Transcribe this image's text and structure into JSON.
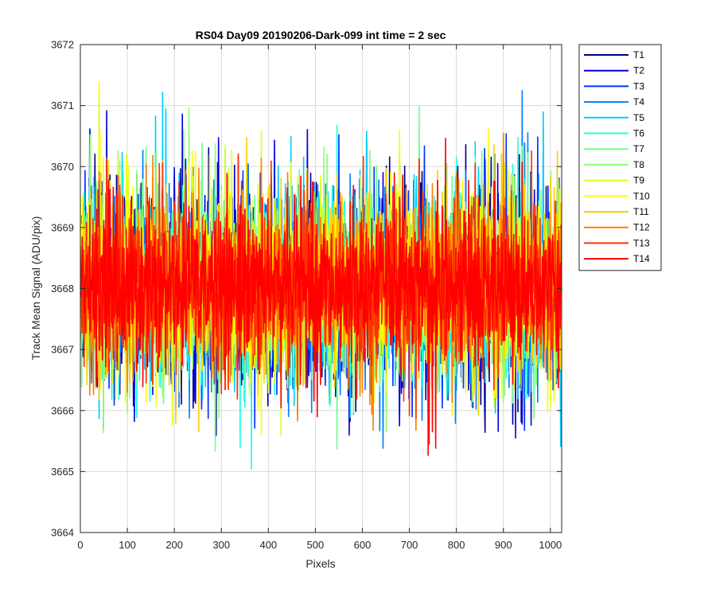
{
  "chart_data": {
    "type": "line",
    "title": "RS04 Day09 20190206-Dark-099 int time = 2 sec",
    "xlabel": "Pixels",
    "ylabel": "Track Mean Signal (ADU/pix)",
    "xlim": [
      0,
      1024
    ],
    "ylim": [
      3664,
      3672
    ],
    "xticks": [
      0,
      100,
      200,
      300,
      400,
      500,
      600,
      700,
      800,
      900,
      1000
    ],
    "yticks": [
      3664,
      3665,
      3666,
      3667,
      3668,
      3669,
      3670,
      3671,
      3672
    ],
    "grid": true,
    "legend_position": "outside-top-right",
    "series": [
      {
        "name": "T1",
        "color": "#00008f",
        "mean": 3668.0,
        "values": [
          3668.2,
          3670.6,
          3667.1,
          3669.3,
          3666.4,
          3670.1,
          3667.8,
          3669.6,
          3665.9,
          3668.4,
          3670.3,
          3667.2,
          3665.6,
          3669.9,
          3667.5,
          3670.4,
          3666.7,
          3668.9,
          3670.0,
          3666.1,
          3669.2,
          3667.4,
          3665.3,
          3669.8,
          3668.0,
          3670.2,
          3667.0,
          3668.6,
          3665.8,
          3669.7,
          3667.6,
          3668.3,
          3670.1,
          3666.3,
          3669.4,
          3667.9,
          3665.4,
          3669.0,
          3668.1,
          3667.3,
          3670.5,
          3668.8,
          3666.0,
          3669.5,
          3667.7,
          3665.7,
          3670.6,
          3668.5,
          3667.1,
          3669.1,
          3666.2
        ]
      },
      {
        "name": "T2",
        "color": "#0000df",
        "mean": 3668.0,
        "values": [
          3669.1,
          3666.8,
          3670.2,
          3667.6,
          3668.9,
          3665.9,
          3670.5,
          3667.3,
          3669.4,
          3666.5,
          3671.0,
          3667.8,
          3668.4,
          3666.1,
          3669.9,
          3668.2,
          3667.0,
          3670.1,
          3666.4,
          3668.7,
          3669.6,
          3667.5,
          3665.7,
          3670.3,
          3667.9,
          3668.5,
          3666.6,
          3669.2,
          3667.2,
          3670.4,
          3666.0,
          3668.8,
          3669.5,
          3667.4,
          3666.3,
          3670.0,
          3668.1,
          3667.7,
          3665.8,
          3669.7,
          3668.3,
          3667.1,
          3670.2,
          3666.7,
          3669.0,
          3668.6,
          3665.6,
          3669.8,
          3667.6,
          3668.0,
          3666.9
        ]
      },
      {
        "name": "T3",
        "color": "#0030ff",
        "mean": 3668.0,
        "values": [
          3667.4,
          3670.7,
          3666.2,
          3669.0,
          3667.9,
          3670.2,
          3665.8,
          3668.6,
          3669.7,
          3666.9,
          3668.1,
          3670.5,
          3667.0,
          3669.3,
          3666.4,
          3668.7,
          3670.0,
          3667.6,
          3665.5,
          3669.5,
          3668.3,
          3667.2,
          3670.3,
          3666.6,
          3668.9,
          3669.8,
          3667.3,
          3665.9,
          3670.1,
          3668.0,
          3666.8,
          3669.2,
          3667.7,
          3670.6,
          3666.1,
          3668.4,
          3669.6,
          3667.1,
          3665.7,
          3669.9,
          3668.2,
          3666.5,
          3670.4,
          3667.5,
          3668.8,
          3669.1,
          3666.3,
          3670.0,
          3667.8,
          3668.5,
          3666.7
        ]
      },
      {
        "name": "T4",
        "color": "#0080ff",
        "mean": 3668.0,
        "values": [
          3668.6,
          3666.3,
          3671.4,
          3667.2,
          3669.5,
          3666.0,
          3670.1,
          3668.3,
          3667.0,
          3669.8,
          3665.9,
          3668.9,
          3670.4,
          3667.5,
          3666.7,
          3669.3,
          3668.0,
          3670.2,
          3666.5,
          3668.5,
          3669.6,
          3667.3,
          3665.6,
          3670.0,
          3668.2,
          3667.8,
          3669.1,
          3666.2,
          3670.5,
          3667.7,
          3668.7,
          3665.8,
          3669.7,
          3667.1,
          3668.4,
          3670.3,
          3666.6,
          3669.0,
          3667.9,
          3665.9,
          3670.1,
          3668.1,
          3666.9,
          3669.4,
          3667.4,
          3668.8,
          3671.4,
          3666.4,
          3669.2,
          3668.0,
          3667.6
        ]
      },
      {
        "name": "T5",
        "color": "#00cfff",
        "mean": 3668.0,
        "values": [
          3669.2,
          3667.1,
          3665.8,
          3670.3,
          3668.0,
          3666.6,
          3669.7,
          3667.8,
          3671.5,
          3666.2,
          3668.6,
          3670.1,
          3667.4,
          3665.7,
          3669.4,
          3668.3,
          3666.9,
          3670.5,
          3667.6,
          3668.9,
          3666.0,
          3669.9,
          3667.2,
          3668.5,
          3670.2,
          3666.4,
          3669.0,
          3667.9,
          3665.5,
          3670.4,
          3668.1,
          3667.0,
          3669.6,
          3666.8,
          3668.7,
          3670.0,
          3667.5,
          3665.9,
          3669.3,
          3668.2,
          3666.5,
          3670.6,
          3667.3,
          3668.8,
          3669.5,
          3666.1,
          3670.2,
          3667.7,
          3668.4,
          3666.7,
          3669.1
        ]
      },
      {
        "name": "T6",
        "color": "#20ffdf",
        "mean": 3668.0,
        "values": [
          3667.7,
          3669.9,
          3666.3,
          3668.8,
          3670.4,
          3667.0,
          3665.7,
          3669.5,
          3668.2,
          3666.8,
          3670.1,
          3667.6,
          3669.0,
          3666.1,
          3668.5,
          3670.3,
          3667.3,
          3664.2,
          3669.8,
          3668.0,
          3666.6,
          3670.0,
          3667.8,
          3669.3,
          3666.4,
          3668.7,
          3670.5,
          3667.1,
          3665.8,
          3669.6,
          3668.3,
          3666.9,
          3670.2,
          3667.4,
          3668.9,
          3666.0,
          3669.7,
          3667.9,
          3665.6,
          3670.4,
          3668.1,
          3667.2,
          3669.4,
          3666.5,
          3668.6,
          3670.1,
          3667.5,
          3666.2,
          3669.1,
          3668.4,
          3667.0
        ]
      },
      {
        "name": "T7",
        "color": "#70ff8f",
        "mean": 3668.0,
        "values": [
          3668.9,
          3666.5,
          3670.2,
          3667.4,
          3669.6,
          3665.9,
          3668.3,
          3670.7,
          3667.1,
          3669.0,
          3666.7,
          3668.6,
          3670.3,
          3667.8,
          3665.6,
          3669.4,
          3668.0,
          3666.3,
          3670.5,
          3667.5,
          3668.8,
          3669.7,
          3666.1,
          3668.2,
          3670.1,
          3667.3,
          3665.8,
          3669.5,
          3668.5,
          3666.8,
          3670.4,
          3667.6,
          3669.1,
          3666.4,
          3668.7,
          3670.0,
          3667.0,
          3665.7,
          3669.8,
          3668.1,
          3666.6,
          3670.3,
          3667.9,
          3668.4,
          3669.3,
          3666.0,
          3670.6,
          3667.2,
          3668.9,
          3666.9,
          3669.2
        ]
      },
      {
        "name": "T8",
        "color": "#8fff70",
        "mean": 3668.0,
        "values": [
          3667.3,
          3670.0,
          3666.8,
          3669.2,
          3667.9,
          3665.7,
          3670.6,
          3668.4,
          3666.2,
          3669.7,
          3667.6,
          3671.6,
          3666.5,
          3668.7,
          3670.1,
          3667.1,
          3669.4,
          3666.0,
          3668.2,
          3670.4,
          3667.7,
          3665.9,
          3669.6,
          3668.5,
          3666.7,
          3670.2,
          3667.4,
          3668.9,
          3666.3,
          3669.9,
          3668.0,
          3667.0,
          3670.5,
          3666.6,
          3668.6,
          3669.5,
          3667.2,
          3665.6,
          3670.3,
          3668.3,
          3666.9,
          3669.1,
          3667.8,
          3668.8,
          3666.1,
          3670.0,
          3667.5,
          3668.1,
          3669.8,
          3666.4,
          3668.5
        ]
      },
      {
        "name": "T9",
        "color": "#dfff20",
        "mean": 3668.0,
        "values": [
          3668.4,
          3666.6,
          3669.8,
          3667.5,
          3670.5,
          3666.1,
          3668.9,
          3667.2,
          3669.5,
          3665.8,
          3670.2,
          3668.0,
          3666.9,
          3669.3,
          3667.7,
          3670.6,
          3666.4,
          3668.6,
          3669.9,
          3667.0,
          3665.7,
          3670.3,
          3668.2,
          3666.8,
          3669.6,
          3667.4,
          3668.7,
          3670.1,
          3666.2,
          3669.0,
          3667.9,
          3665.9,
          3670.4,
          3668.5,
          3667.1,
          3669.4,
          3666.5,
          3668.8,
          3670.0,
          3667.6,
          3666.0,
          3669.7,
          3668.1,
          3667.3,
          3670.2,
          3666.7,
          3668.9,
          3669.2,
          3667.8,
          3665.8,
          3670.3
        ]
      },
      {
        "name": "T10",
        "color": "#ffff00",
        "mean": 3668.0,
        "values": [
          3669.5,
          3667.0,
          3671.6,
          3666.6,
          3668.8,
          3670.3,
          3667.4,
          3665.9,
          3669.9,
          3668.2,
          3666.7,
          3670.7,
          3667.8,
          3669.1,
          3666.3,
          3668.5,
          3670.2,
          3667.2,
          3665.6,
          3669.7,
          3668.1,
          3666.9,
          3670.5,
          3667.6,
          3668.7,
          3669.4,
          3666.2,
          3670.0,
          3667.9,
          3668.4,
          3666.5,
          3669.8,
          3667.3,
          3670.4,
          3665.8,
          3668.9,
          3669.6,
          3667.0,
          3666.8,
          3670.1,
          3668.3,
          3667.5,
          3669.2,
          3666.0,
          3670.6,
          3667.7,
          3668.6,
          3669.0,
          3666.4,
          3670.2,
          3667.1
        ]
      },
      {
        "name": "T11",
        "color": "#ffcf00",
        "mean": 3668.0,
        "values": [
          3667.6,
          3669.7,
          3666.0,
          3670.4,
          3668.1,
          3666.8,
          3669.3,
          3667.3,
          3670.6,
          3665.8,
          3668.7,
          3669.9,
          3667.0,
          3666.5,
          3670.1,
          3668.4,
          3667.7,
          3669.5,
          3666.2,
          3668.9,
          3670.3,
          3667.4,
          3665.7,
          3669.8,
          3668.0,
          3666.7,
          3670.5,
          3667.8,
          3668.6,
          3669.1,
          3666.3,
          3670.0,
          3667.2,
          3668.3,
          3669.6,
          3666.9,
          3664.9,
          3670.2,
          3668.5,
          3667.5,
          3669.4,
          3666.1,
          3668.8,
          3670.4,
          3667.1,
          3666.6,
          3669.9,
          3668.2,
          3667.9,
          3670.1,
          3666.4
        ]
      },
      {
        "name": "T12",
        "color": "#ff8000",
        "mean": 3668.0,
        "values": [
          3668.1,
          3666.2,
          3670.1,
          3667.5,
          3669.4,
          3665.9,
          3668.7,
          3670.3,
          3667.0,
          3669.8,
          3666.6,
          3668.4,
          3670.0,
          3667.7,
          3666.0,
          3669.5,
          3668.2,
          3666.8,
          3670.4,
          3667.3,
          3668.9,
          3669.2,
          3665.8,
          3668.5,
          3670.2,
          3667.6,
          3666.4,
          3669.7,
          3668.0,
          3667.1,
          3664.6,
          3669.0,
          3667.9,
          3670.5,
          3666.3,
          3668.6,
          3669.6,
          3667.4,
          3666.1,
          3670.1,
          3668.3,
          3667.8,
          3669.3,
          3666.7,
          3670.6,
          3667.2,
          3668.8,
          3669.9,
          3666.5,
          3668.4,
          3667.0
        ]
      },
      {
        "name": "T13",
        "color": "#ff3000",
        "mean": 3668.0,
        "values": [
          3668.7,
          3667.2,
          3669.9,
          3666.4,
          3670.2,
          3667.8,
          3668.3,
          3666.1,
          3669.6,
          3667.5,
          3670.0,
          3666.8,
          3668.9,
          3669.3,
          3667.0,
          3665.9,
          3670.4,
          3668.1,
          3666.5,
          3669.7,
          3667.6,
          3668.5,
          3666.2,
          3670.1,
          3667.9,
          3668.8,
          3666.9,
          3669.5,
          3667.3,
          3670.3,
          3666.0,
          3668.4,
          3669.8,
          3667.1,
          3664.8,
          3670.0,
          3668.2,
          3667.4,
          3669.1,
          3666.6,
          3668.6,
          3670.2,
          3667.7,
          3666.3,
          3669.4,
          3668.0,
          3667.5,
          3670.5,
          3666.7,
          3668.9,
          3667.9
        ]
      },
      {
        "name": "T14",
        "color": "#ff0000",
        "mean": 3668.0,
        "values": [
          3668.0,
          3669.4,
          3666.9,
          3670.0,
          3667.6,
          3668.8,
          3666.3,
          3669.7,
          3667.9,
          3668.4,
          3666.7,
          3670.3,
          3667.3,
          3668.6,
          3669.1,
          3666.1,
          3668.2,
          3670.1,
          3667.0,
          3669.5,
          3666.5,
          3668.9,
          3670.4,
          3667.7,
          3664.8,
          3669.2,
          3668.3,
          3666.8,
          3669.9,
          3667.4,
          3668.7,
          3670.2,
          3666.2,
          3669.6,
          3668.1,
          3667.2,
          3664.3,
          3670.0,
          3668.5,
          3667.8,
          3669.3,
          3666.6,
          3668.8,
          3669.8,
          3667.1,
          3666.4,
          3670.3,
          3668.0,
          3667.5,
          3669.0,
          3668.3
        ]
      }
    ]
  }
}
